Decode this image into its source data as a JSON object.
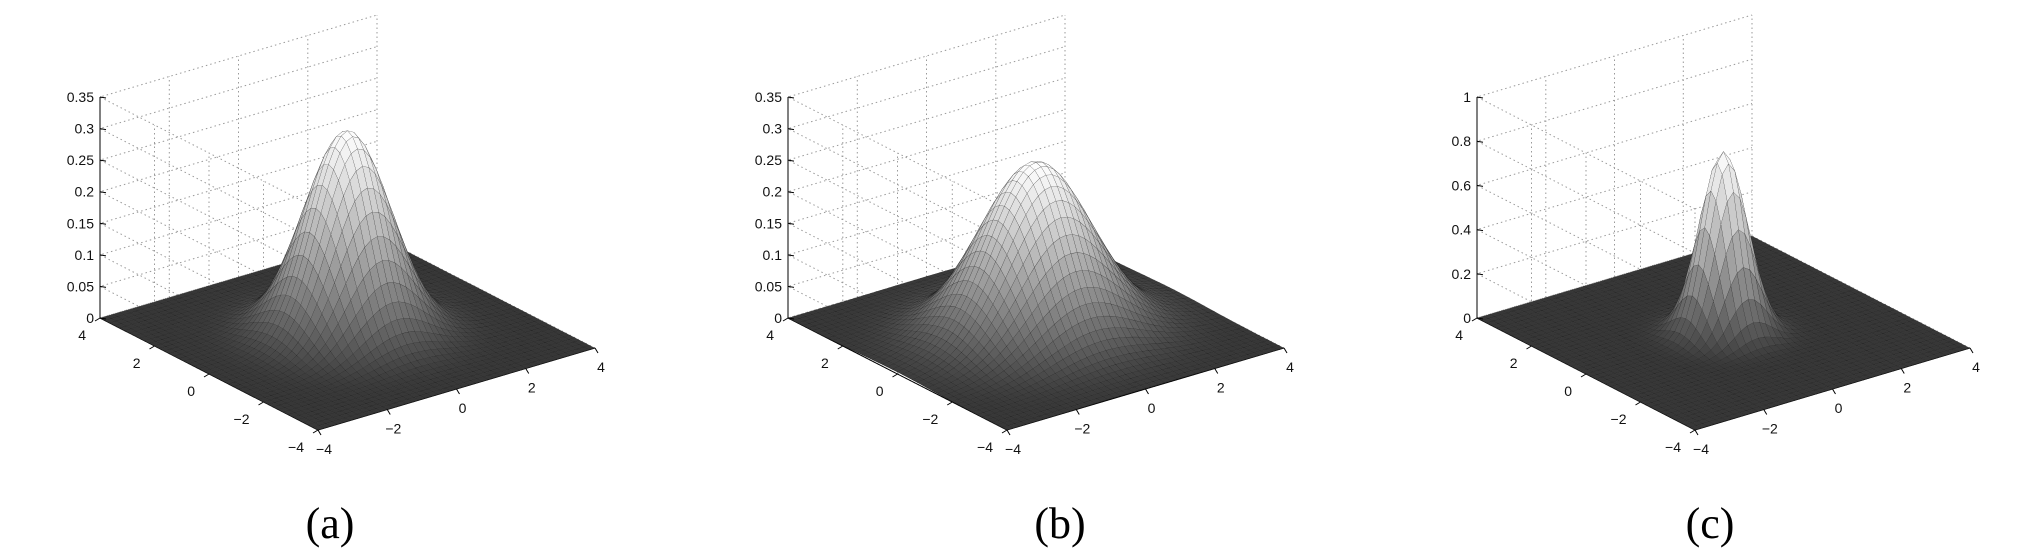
{
  "chart_data": [
    {
      "type": "surface",
      "caption": "(a)",
      "x_ticks": [
        "−4",
        "−2",
        "0",
        "2",
        "4"
      ],
      "y_ticks": [
        "−4",
        "−2",
        "0",
        "2",
        "4"
      ],
      "z_ticks": [
        "0",
        "0.05",
        "0.1",
        "0.15",
        "0.2",
        "0.25",
        "0.3",
        "0.35"
      ],
      "xlim": [
        -4,
        4
      ],
      "ylim": [
        -4,
        4
      ],
      "zlim": [
        0,
        0.35
      ],
      "grid": true,
      "surface": {
        "kind": "gaussian",
        "peak": 0.32,
        "sx": 1.0,
        "sy": 1.0,
        "mx": 0,
        "my": 0
      }
    },
    {
      "type": "surface",
      "caption": "(b)",
      "x_ticks": [
        "−4",
        "−2",
        "0",
        "2",
        "4"
      ],
      "y_ticks": [
        "−4",
        "−2",
        "0",
        "2",
        "4"
      ],
      "z_ticks": [
        "0",
        "0.05",
        "0.1",
        "0.15",
        "0.2",
        "0.25",
        "0.3",
        "0.35"
      ],
      "xlim": [
        -4,
        4
      ],
      "ylim": [
        -4,
        4
      ],
      "zlim": [
        0,
        0.35
      ],
      "grid": true,
      "surface": {
        "kind": "gaussian",
        "peak": 0.27,
        "sx": 1.35,
        "sy": 1.2,
        "mx": 0,
        "my": 0
      }
    },
    {
      "type": "surface",
      "caption": "(c)",
      "x_ticks": [
        "−4",
        "−2",
        "0",
        "2",
        "4"
      ],
      "y_ticks": [
        "−4",
        "−2",
        "0",
        "2",
        "4"
      ],
      "z_ticks": [
        "0",
        "0.2",
        "0.4",
        "0.6",
        "0.8",
        "1"
      ],
      "xlim": [
        -4,
        4
      ],
      "ylim": [
        -4,
        4
      ],
      "zlim": [
        0,
        1
      ],
      "grid": true,
      "surface": {
        "kind": "gaussian",
        "peak": 0.82,
        "sx": 0.55,
        "sy": 0.55,
        "mx": 0,
        "my": 0
      }
    }
  ]
}
